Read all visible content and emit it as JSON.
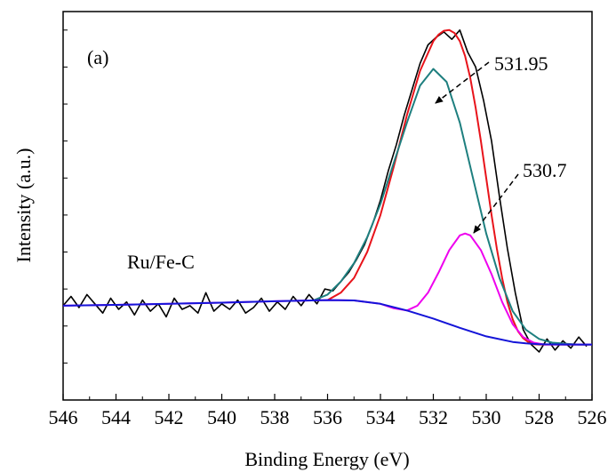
{
  "chart_data": {
    "type": "line",
    "title": "",
    "xlabel": "Binding Energy (eV)",
    "ylabel": "Intensity (a.u.)",
    "xlim": [
      546,
      526
    ],
    "x_reversed": true,
    "ylim": [
      -0.5,
      10
    ],
    "grid": false,
    "legend": "none",
    "xticks": [
      546,
      544,
      542,
      540,
      538,
      536,
      534,
      532,
      530,
      528,
      526
    ],
    "xtick_labels": [
      "546",
      "544",
      "542",
      "540",
      "538",
      "536",
      "534",
      "532",
      "530",
      "528",
      "526"
    ],
    "y_minor_tick_values": [
      0.5,
      1.5,
      2.5,
      3.5,
      4.5,
      5.5,
      6.5,
      7.5,
      8.5,
      9.5
    ],
    "annotations": {
      "panel": "(a)",
      "sample": "Ru/Fe-C",
      "peak1": "531.95",
      "peak2": "530.7"
    },
    "series": [
      {
        "id": "raw",
        "color": "#000000",
        "x": [
          546,
          545.7,
          545.4,
          545.1,
          544.8,
          544.5,
          544.2,
          543.9,
          543.6,
          543.3,
          543,
          542.7,
          542.4,
          542.1,
          541.8,
          541.5,
          541.2,
          540.9,
          540.6,
          540.3,
          540,
          539.7,
          539.4,
          539.1,
          538.8,
          538.5,
          538.2,
          537.9,
          537.6,
          537.3,
          537,
          536.7,
          536.4,
          536.1,
          535.8,
          535.5,
          535.2,
          534.9,
          534.6,
          534.3,
          534,
          533.7,
          533.4,
          533.1,
          532.8,
          532.5,
          532.2,
          531.9,
          531.6,
          531.3,
          531,
          530.7,
          530.4,
          530.1,
          529.8,
          529.5,
          529.2,
          528.9,
          528.6,
          528.3,
          528,
          527.7,
          527.4,
          527.1,
          526.8,
          526.5,
          526.2
        ],
        "y": [
          2.05,
          2.3,
          2.0,
          2.35,
          2.1,
          1.85,
          2.25,
          1.95,
          2.15,
          1.8,
          2.2,
          1.9,
          2.1,
          1.75,
          2.25,
          1.95,
          2.05,
          1.85,
          2.4,
          1.9,
          2.1,
          1.95,
          2.2,
          1.85,
          2.0,
          2.25,
          1.9,
          2.15,
          1.95,
          2.3,
          2.05,
          2.35,
          2.1,
          2.5,
          2.45,
          2.7,
          2.95,
          3.3,
          3.7,
          4.25,
          4.9,
          5.7,
          6.4,
          7.2,
          7.9,
          8.6,
          9.1,
          9.3,
          9.45,
          9.25,
          9.5,
          8.9,
          8.5,
          7.6,
          6.5,
          5.0,
          3.6,
          2.4,
          1.4,
          1.0,
          0.8,
          1.15,
          0.85,
          1.1,
          0.9,
          1.2,
          0.95
        ]
      },
      {
        "id": "envelope",
        "color": "#e8141b",
        "x": [
          536,
          535.5,
          535,
          534.5,
          534,
          533.5,
          533,
          532.5,
          532,
          531.8,
          531.6,
          531.4,
          531.2,
          531,
          530.8,
          530.6,
          530.4,
          530.2,
          530,
          529.8,
          529.6,
          529.4,
          529.2,
          529,
          528.8,
          528.6,
          528.4,
          528.2,
          528,
          527.5,
          527,
          526.5,
          526
        ],
        "y": [
          2.2,
          2.4,
          2.8,
          3.5,
          4.5,
          5.8,
          7.2,
          8.4,
          9.2,
          9.38,
          9.48,
          9.5,
          9.42,
          9.2,
          8.8,
          8.2,
          7.4,
          6.5,
          5.5,
          4.5,
          3.6,
          2.8,
          2.15,
          1.68,
          1.36,
          1.17,
          1.06,
          1.01,
          1.0,
          1.0,
          1.0,
          1.0,
          1.0
        ]
      },
      {
        "id": "peak-531.95",
        "color": "#1e7f7f",
        "x": [
          536.5,
          536,
          535.5,
          535,
          534.5,
          534,
          533.5,
          533,
          532.5,
          532,
          531.5,
          531,
          530.5,
          530,
          529.5,
          529,
          528.5,
          528,
          527.5,
          527,
          526.5,
          526
        ],
        "y": [
          2.2,
          2.35,
          2.7,
          3.2,
          3.9,
          4.8,
          5.9,
          7.0,
          8.0,
          8.45,
          8.1,
          7.0,
          5.5,
          4.0,
          2.8,
          1.9,
          1.4,
          1.15,
          1.05,
          1.02,
          1.0,
          1.0
        ]
      },
      {
        "id": "peak-530.7",
        "color": "#ee00ee",
        "x": [
          546,
          544,
          542,
          540,
          538,
          536,
          535,
          534,
          533.5,
          533,
          532.6,
          532.2,
          531.8,
          531.4,
          531,
          530.8,
          530.6,
          530.2,
          529.8,
          529.4,
          529,
          528.6,
          528.2,
          527.8,
          527.4,
          527,
          526.5,
          526
        ],
        "y": [
          2.05,
          2.07,
          2.1,
          2.13,
          2.17,
          2.2,
          2.19,
          2.1,
          1.98,
          1.92,
          2.05,
          2.4,
          2.95,
          3.55,
          3.95,
          4.0,
          3.95,
          3.55,
          2.9,
          2.15,
          1.55,
          1.2,
          1.05,
          1.0,
          1.0,
          1.0,
          1.0,
          1.0
        ]
      },
      {
        "id": "background",
        "color": "#1414d8",
        "x": [
          546,
          544,
          542,
          540,
          538,
          536,
          535,
          534,
          533,
          532,
          531,
          530,
          529,
          528.5,
          528,
          527,
          526
        ],
        "y": [
          2.05,
          2.07,
          2.1,
          2.13,
          2.17,
          2.2,
          2.19,
          2.1,
          1.92,
          1.7,
          1.45,
          1.22,
          1.07,
          1.03,
          1.01,
          1.0,
          1.0
        ]
      }
    ]
  }
}
